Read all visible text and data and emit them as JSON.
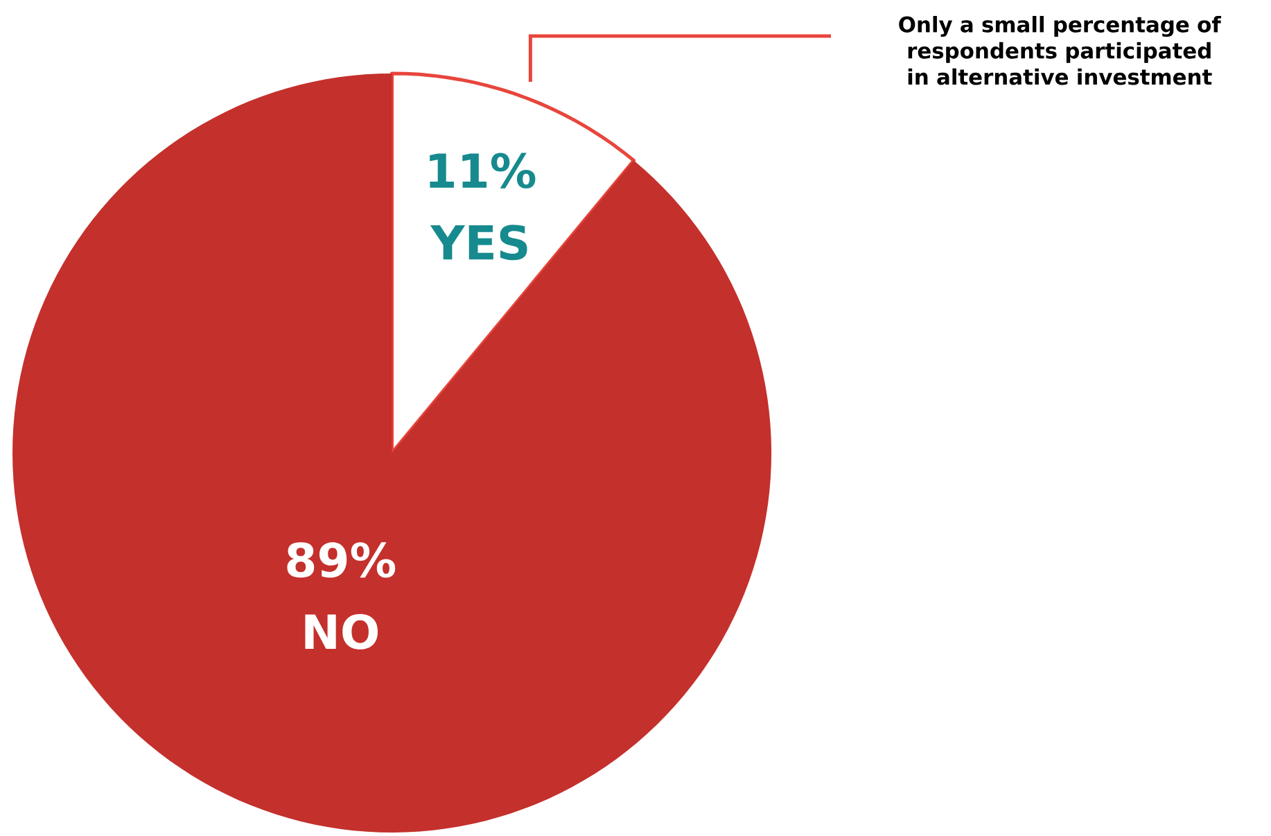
{
  "chart_data": {
    "type": "pie",
    "categories": [
      "YES",
      "NO"
    ],
    "values": [
      11,
      89
    ],
    "value_labels": [
      "11%",
      "89%"
    ],
    "colors": [
      "#ffffff",
      "#c4302c"
    ],
    "annotations": [
      "Only a small percentage of respondents participated in alternative investment"
    ]
  }
}
